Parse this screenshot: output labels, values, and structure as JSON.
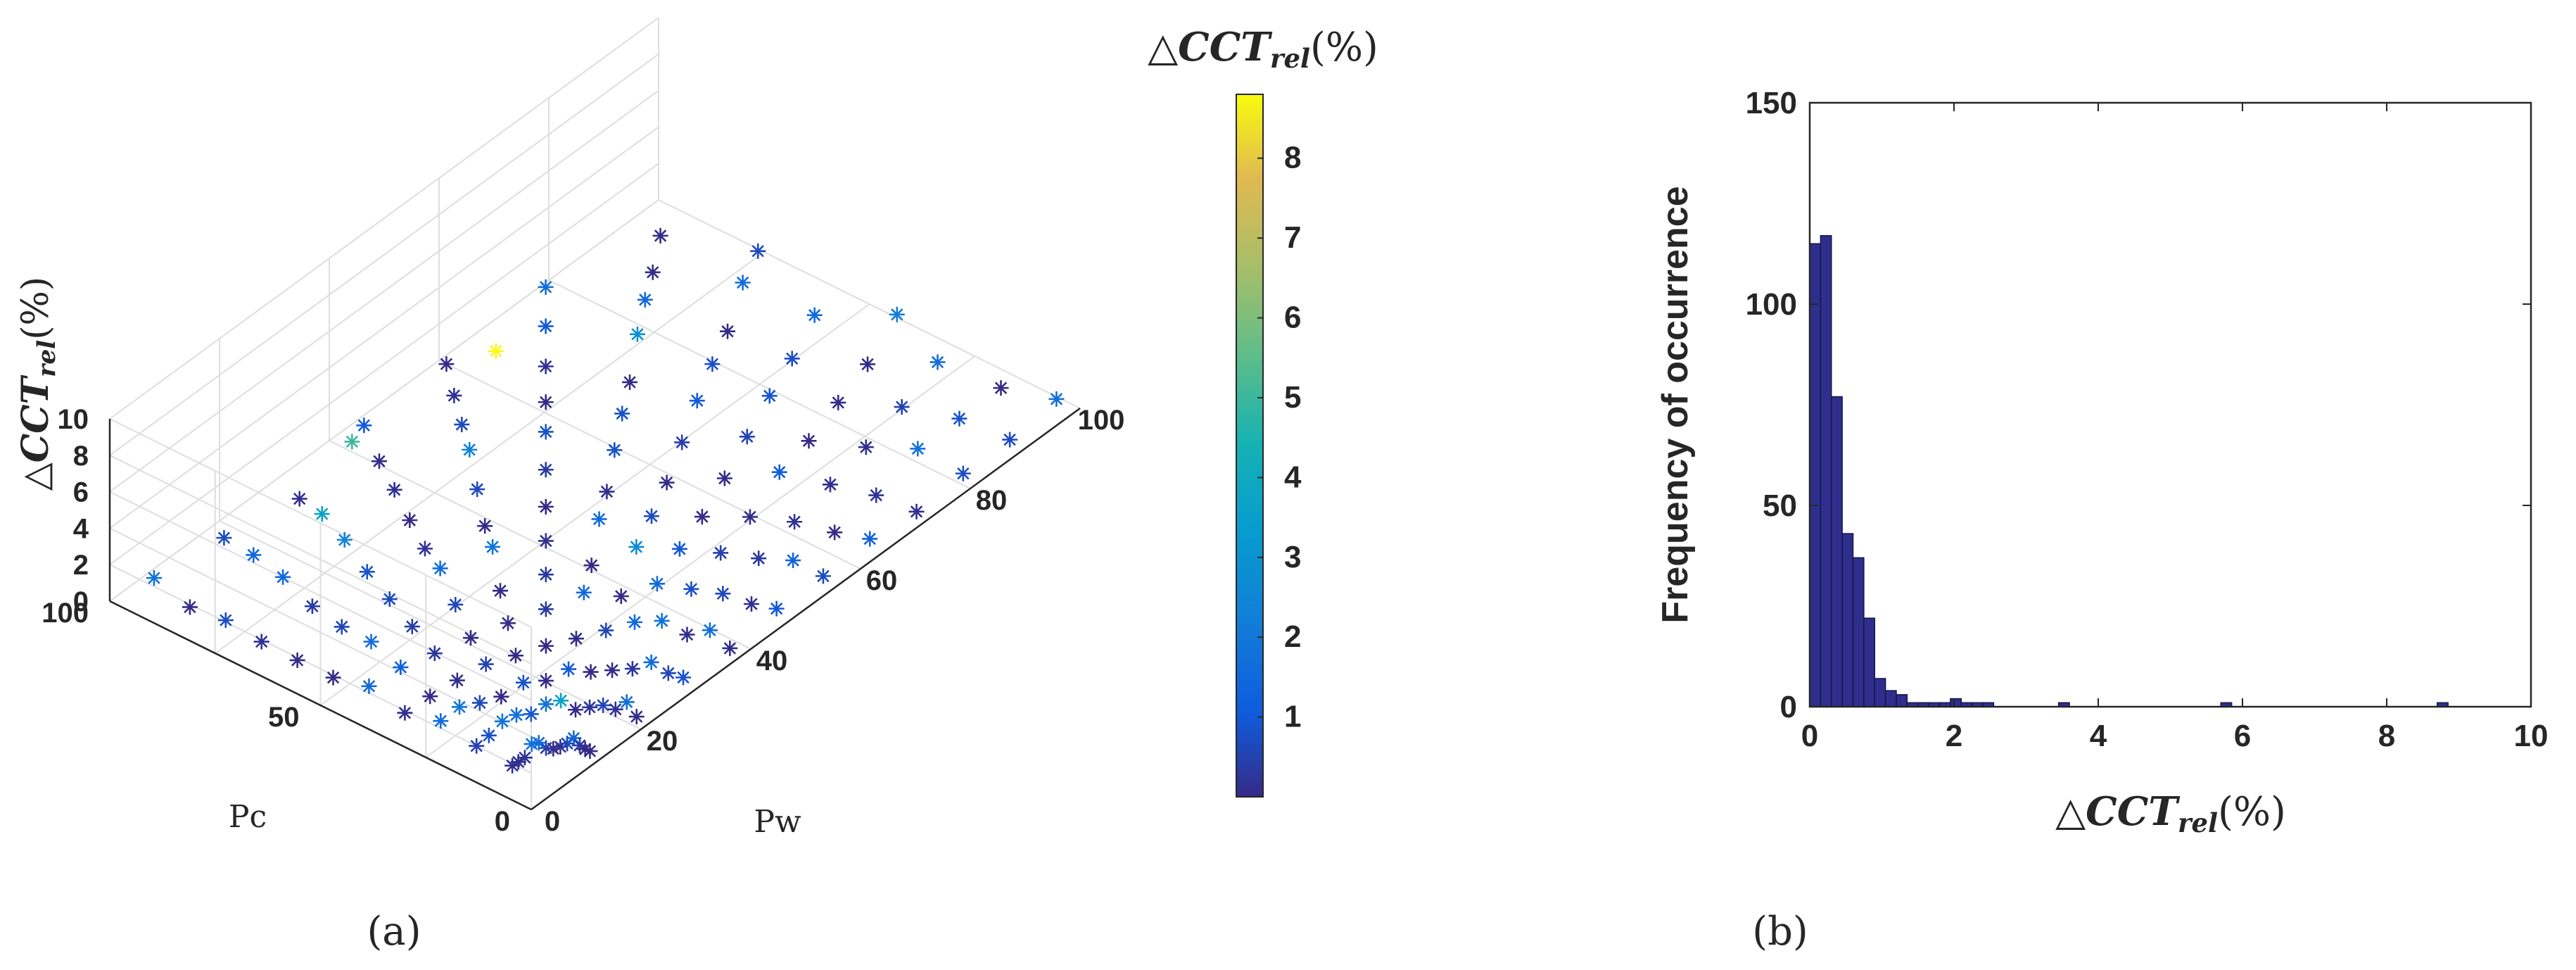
{
  "chart_data": [
    {
      "panel": "a",
      "type": "scatter",
      "subtype": "3d-scatter",
      "marker": "asterisk",
      "colormap": "parula",
      "caption": "(a)",
      "zlabel": "△CCT_rel(%)",
      "zlabel_parts": {
        "prefix": "△",
        "main": "CCT",
        "sub": "rel",
        "suffix": "(%)"
      },
      "xlabel": "Pw",
      "ylabel": "Pc",
      "xlim": [
        0,
        100
      ],
      "ylim": [
        0,
        100
      ],
      "zlim": [
        0,
        10
      ],
      "xticks": [
        "0",
        "20",
        "40",
        "60",
        "80",
        "100"
      ],
      "yticks": [
        "0",
        "50",
        "100"
      ],
      "zticks": [
        "0",
        "2",
        "4",
        "6",
        "8",
        "10"
      ],
      "grid": true,
      "colorbar": {
        "title": "△CCT_rel(%)",
        "title_parts": {
          "prefix": "△",
          "main": "CCT",
          "sub": "rel",
          "suffix": "(%)"
        },
        "range": [
          0,
          8.8
        ],
        "ticks": [
          "1",
          "2",
          "3",
          "4",
          "5",
          "6",
          "7",
          "8"
        ],
        "placement": "right"
      },
      "note": "Points on a radial grid over Pw x Pc; most values below 1 %, a few reach ~2–4 %, one outlier near 8.8 %."
    },
    {
      "panel": "b",
      "type": "bar",
      "subtype": "histogram",
      "caption": "(b)",
      "xlabel": "△CCT_rel(%)",
      "xlabel_parts": {
        "prefix": "△",
        "main": "CCT",
        "sub": "rel",
        "suffix": "(%)"
      },
      "ylabel": "Frequency of occurrence",
      "xlim": [
        0,
        10
      ],
      "ylim": [
        0,
        150
      ],
      "xticks": [
        "0",
        "2",
        "4",
        "6",
        "8",
        "10"
      ],
      "yticks": [
        "0",
        "50",
        "100",
        "150"
      ],
      "bin_width": 0.15,
      "bin_start": 0,
      "counts": [
        115,
        117,
        77,
        43,
        37,
        22,
        7,
        4,
        3,
        1,
        1,
        1,
        1,
        2,
        1,
        1,
        1,
        0,
        0,
        0,
        0,
        0,
        0,
        1,
        0,
        0,
        0,
        0,
        0,
        0,
        0,
        0,
        0,
        0,
        0,
        0,
        0,
        0,
        1,
        0,
        0,
        0,
        0,
        0,
        0,
        0,
        0,
        0,
        0,
        0,
        0,
        0,
        0,
        0,
        0,
        0,
        0,
        0,
        1
      ],
      "bar_color": "#2e2f8c",
      "grid": false
    }
  ]
}
